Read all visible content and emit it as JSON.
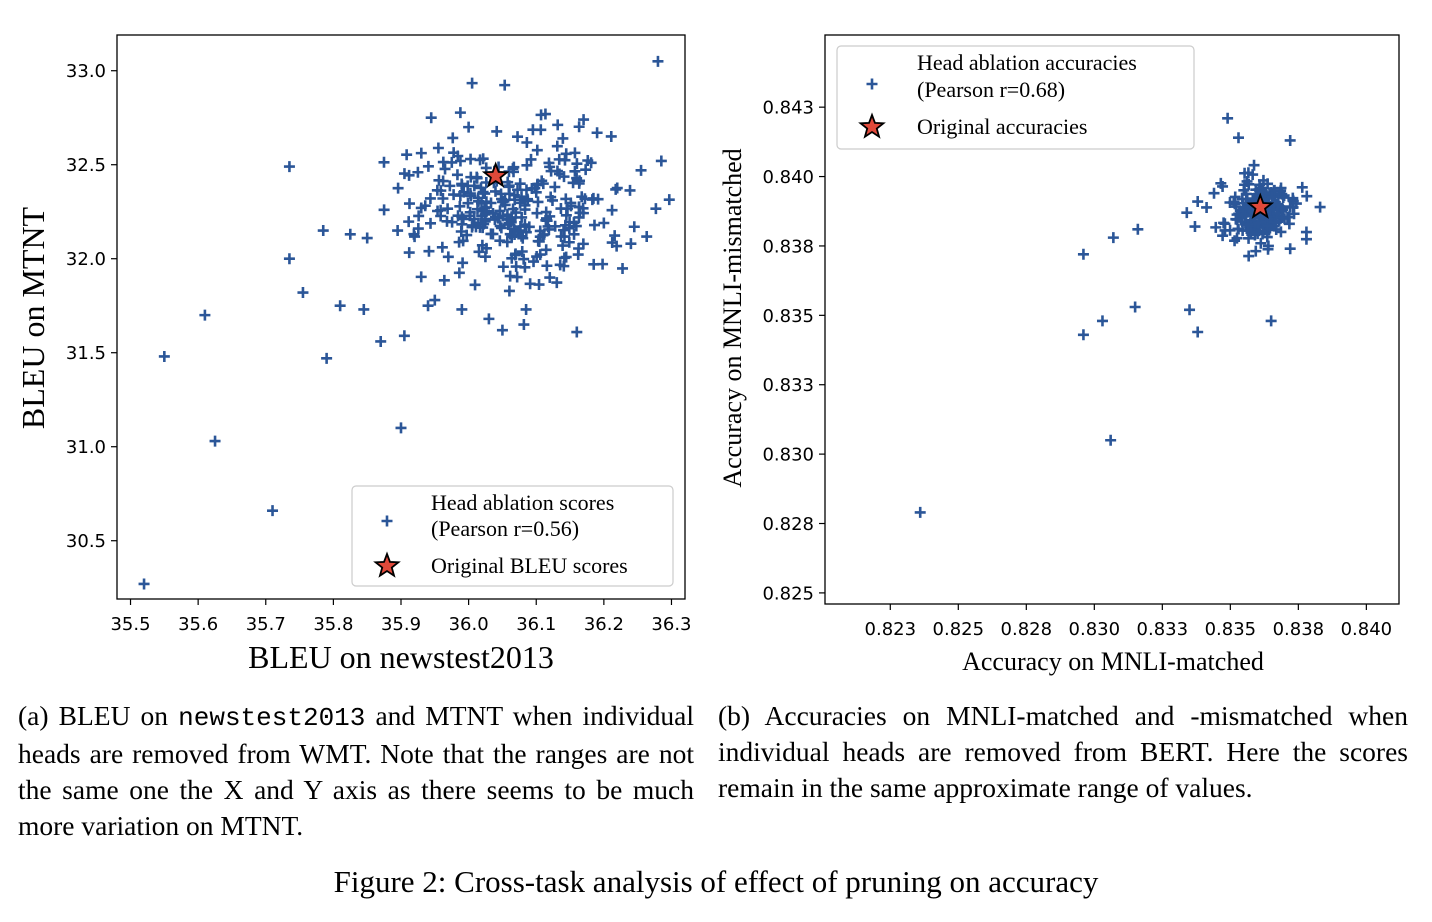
{
  "chart_data": [
    {
      "id": "panel-a",
      "type": "scatter",
      "title": "",
      "xlabel": "BLEU on newstest2013",
      "ylabel": "BLEU on MTNT",
      "xlim": [
        35.48,
        36.32
      ],
      "ylim": [
        30.19,
        33.19
      ],
      "xticks": [
        35.5,
        35.6,
        35.7,
        35.8,
        35.9,
        36.0,
        36.1,
        36.2,
        36.3
      ],
      "xtick_labels": [
        "35.5",
        "35.6",
        "35.7",
        "35.8",
        "35.9",
        "36.0",
        "36.1",
        "36.2",
        "36.3"
      ],
      "yticks": [
        30.5,
        31.0,
        31.5,
        32.0,
        32.5,
        33.0
      ],
      "ytick_labels": [
        "30.5",
        "31.0",
        "31.5",
        "32.0",
        "32.5",
        "33.0"
      ],
      "grid": false,
      "legend_position": "bottom-right",
      "series": [
        {
          "name": "Head ablation scores",
          "name_line2": "(Pearson r=0.56)",
          "marker": "plus",
          "color": "#2b5698",
          "cluster": {
            "center": [
              36.07,
              32.28
            ],
            "spread": [
              0.075,
              0.2
            ],
            "count": 300,
            "seed": 7
          },
          "points": [
            [
              35.52,
              30.27
            ],
            [
              35.55,
              31.48
            ],
            [
              35.61,
              31.7
            ],
            [
              35.625,
              31.03
            ],
            [
              35.71,
              30.66
            ],
            [
              35.735,
              32.49
            ],
            [
              35.735,
              32.0
            ],
            [
              35.755,
              31.82
            ],
            [
              35.785,
              32.15
            ],
            [
              35.79,
              31.47
            ],
            [
              35.81,
              31.75
            ],
            [
              35.825,
              32.13
            ],
            [
              35.845,
              31.73
            ],
            [
              35.85,
              32.11
            ],
            [
              35.87,
              31.56
            ],
            [
              35.875,
              32.26
            ],
            [
              35.895,
              32.15
            ],
            [
              35.9,
              31.1
            ],
            [
              35.905,
              31.59
            ],
            [
              35.925,
              32.46
            ],
            [
              35.93,
              32.27
            ],
            [
              35.94,
              31.75
            ],
            [
              35.95,
              31.78
            ],
            [
              35.97,
              32.01
            ],
            [
              35.99,
              31.73
            ],
            [
              36.03,
              31.68
            ],
            [
              36.05,
              31.62
            ],
            [
              36.085,
              31.73
            ],
            [
              36.12,
              31.9
            ],
            [
              36.16,
              31.61
            ],
            [
              36.185,
              31.97
            ],
            [
              36.19,
              32.67
            ],
            [
              36.2,
              32.19
            ],
            [
              36.24,
              32.08
            ],
            [
              36.245,
              32.17
            ],
            [
              36.255,
              32.47
            ],
            [
              36.28,
              33.05
            ],
            [
              36.285,
              32.52
            ],
            [
              36.17,
              32.74
            ],
            [
              36.0,
              32.7
            ]
          ]
        },
        {
          "name": "Original BLEU scores",
          "marker": "star",
          "color": "#e0493a",
          "points": [
            [
              36.04,
              32.44
            ]
          ]
        }
      ]
    },
    {
      "id": "panel-b",
      "type": "scatter",
      "title": "",
      "xlabel": "Accuracy on MNLI-matched",
      "ylabel": "Accuracy on MNLI-mismatched",
      "xlim": [
        0.8201,
        0.8412
      ],
      "ylim": [
        0.8246,
        0.8451
      ],
      "xticks": [
        0.8225,
        0.825,
        0.8275,
        0.83,
        0.8325,
        0.835,
        0.8375,
        0.84
      ],
      "xtick_labels": [
        "0.823",
        "0.825",
        "0.828",
        "0.830",
        "0.833",
        "0.835",
        "0.838",
        "0.840"
      ],
      "yticks": [
        0.825,
        0.8275,
        0.83,
        0.8325,
        0.835,
        0.8375,
        0.84,
        0.8425
      ],
      "ytick_labels": [
        "0.825",
        "0.828",
        "0.830",
        "0.833",
        "0.835",
        "0.838",
        "0.840",
        "0.843"
      ],
      "grid": false,
      "legend_position": "top-left",
      "series": [
        {
          "name": "Head ablation accuracies",
          "name_line2": "(Pearson r=0.68)",
          "marker": "plus",
          "color": "#2b5698",
          "cluster": {
            "center": [
              0.836,
              0.8388
            ],
            "spread": [
              0.0007,
              0.0006
            ],
            "count": 200,
            "seed": 13
          },
          "points": [
            [
              0.8236,
              0.8279
            ],
            [
              0.8296,
              0.8372
            ],
            [
              0.8296,
              0.8343
            ],
            [
              0.8303,
              0.8348
            ],
            [
              0.8306,
              0.8305
            ],
            [
              0.8307,
              0.8378
            ],
            [
              0.8315,
              0.8353
            ],
            [
              0.8316,
              0.8381
            ],
            [
              0.8335,
              0.8352
            ],
            [
              0.8337,
              0.8382
            ],
            [
              0.8338,
              0.8344
            ],
            [
              0.8334,
              0.8387
            ],
            [
              0.8338,
              0.8391
            ],
            [
              0.8344,
              0.8394
            ],
            [
              0.8349,
              0.8421
            ],
            [
              0.8353,
              0.8414
            ],
            [
              0.8365,
              0.8348
            ],
            [
              0.8372,
              0.8413
            ],
            [
              0.8383,
              0.8389
            ],
            [
              0.8372,
              0.8374
            ],
            [
              0.8364,
              0.8375
            ],
            [
              0.8348,
              0.8383
            ]
          ]
        },
        {
          "name": "Original accuracies",
          "marker": "star",
          "color": "#e0493a",
          "points": [
            [
              0.8361,
              0.8389
            ]
          ]
        }
      ]
    }
  ],
  "captions": {
    "panel_a_prefix": "(a)  BLEU on ",
    "panel_a_mono": "newstest2013",
    "panel_a_suffix": " and MTNT when individual heads are removed from WMT. Note that the ranges are not the same one the X and Y axis as there seems to be much more variation on MTNT.",
    "panel_b": "(b)  Accuracies on MNLI-matched and -mismatched when individual heads are removed from BERT. Here the scores remain in the same approximate range of values.",
    "figure": "Figure 2: Cross-task analysis of effect of pruning on accuracy"
  }
}
